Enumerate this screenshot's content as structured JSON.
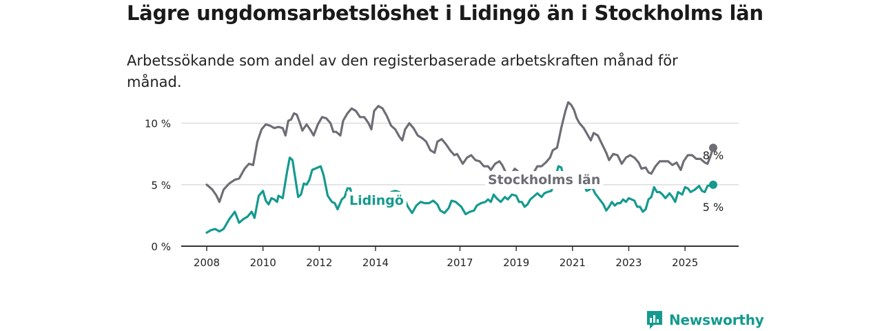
{
  "title": "Lägre ungdomsarbetslöshet i Lidingö än i Stockholms län",
  "subtitle": "Arbetssökande som andel av den registerbaserade arbetskraften månad för månad.",
  "brand": "Newsworthy",
  "colors": {
    "stockholm": "#6d6d75",
    "lidingo": "#149a8e",
    "grid": "#dddddd",
    "axis": "#333333"
  },
  "chart_data": {
    "type": "line",
    "title": "Lägre ungdomsarbetslöshet i Lidingö än i Stockholms län",
    "ylim": [
      0,
      12
    ],
    "xlim": [
      2008.0,
      2026.0
    ],
    "y_ticks": [
      {
        "value": 0,
        "label": "0 %"
      },
      {
        "value": 5,
        "label": "5 %"
      },
      {
        "value": 10,
        "label": "10 %"
      }
    ],
    "x_ticks": [
      {
        "value": 2008,
        "label": "2008"
      },
      {
        "value": 2010,
        "label": "2010"
      },
      {
        "value": 2012,
        "label": "2012"
      },
      {
        "value": 2014,
        "label": "2014"
      },
      {
        "value": 2017,
        "label": "2017"
      },
      {
        "value": 2019,
        "label": "2019"
      },
      {
        "value": 2021,
        "label": "2021"
      },
      {
        "value": 2023,
        "label": "2023"
      },
      {
        "value": 2025,
        "label": "2025"
      }
    ],
    "grid": "horizontal",
    "series": [
      {
        "name": "Stockholms län",
        "color": "#6d6d75",
        "end_label": "8 %",
        "points": [
          [
            2008.0,
            5.0
          ],
          [
            2008.2,
            4.6
          ],
          [
            2008.35,
            4.1
          ],
          [
            2008.45,
            3.6
          ],
          [
            2008.6,
            4.6
          ],
          [
            2008.8,
            5.1
          ],
          [
            2009.0,
            5.4
          ],
          [
            2009.15,
            5.5
          ],
          [
            2009.35,
            6.3
          ],
          [
            2009.5,
            6.7
          ],
          [
            2009.65,
            6.6
          ],
          [
            2009.8,
            8.5
          ],
          [
            2009.95,
            9.5
          ],
          [
            2010.1,
            9.9
          ],
          [
            2010.25,
            9.8
          ],
          [
            2010.4,
            9.6
          ],
          [
            2010.55,
            9.7
          ],
          [
            2010.7,
            9.6
          ],
          [
            2010.8,
            9.0
          ],
          [
            2010.9,
            10.2
          ],
          [
            2011.0,
            10.3
          ],
          [
            2011.1,
            10.8
          ],
          [
            2011.2,
            10.7
          ],
          [
            2011.3,
            10.1
          ],
          [
            2011.4,
            9.4
          ],
          [
            2011.55,
            9.9
          ],
          [
            2011.7,
            9.4
          ],
          [
            2011.8,
            9.0
          ],
          [
            2011.95,
            9.9
          ],
          [
            2012.1,
            10.5
          ],
          [
            2012.25,
            10.4
          ],
          [
            2012.4,
            10.0
          ],
          [
            2012.5,
            9.3
          ],
          [
            2012.6,
            9.3
          ],
          [
            2012.75,
            9.0
          ],
          [
            2012.85,
            10.2
          ],
          [
            2013.0,
            10.8
          ],
          [
            2013.15,
            11.2
          ],
          [
            2013.3,
            11.0
          ],
          [
            2013.45,
            10.5
          ],
          [
            2013.6,
            10.5
          ],
          [
            2013.75,
            10.0
          ],
          [
            2013.85,
            9.5
          ],
          [
            2013.95,
            11.0
          ],
          [
            2014.1,
            11.4
          ],
          [
            2014.25,
            11.2
          ],
          [
            2014.4,
            10.6
          ],
          [
            2014.55,
            9.8
          ],
          [
            2014.7,
            9.5
          ],
          [
            2014.85,
            8.9
          ],
          [
            2014.95,
            8.6
          ],
          [
            2015.05,
            9.5
          ],
          [
            2015.2,
            10.0
          ],
          [
            2015.35,
            9.6
          ],
          [
            2015.5,
            9.0
          ],
          [
            2015.65,
            8.8
          ],
          [
            2015.8,
            8.5
          ],
          [
            2015.95,
            7.8
          ],
          [
            2016.1,
            7.6
          ],
          [
            2016.2,
            8.5
          ],
          [
            2016.35,
            8.7
          ],
          [
            2016.5,
            8.3
          ],
          [
            2016.65,
            7.8
          ],
          [
            2016.8,
            7.4
          ],
          [
            2016.9,
            7.5
          ],
          [
            2017.0,
            7.1
          ],
          [
            2017.1,
            6.7
          ],
          [
            2017.25,
            7.2
          ],
          [
            2017.4,
            7.4
          ],
          [
            2017.55,
            7.0
          ],
          [
            2017.7,
            6.9
          ],
          [
            2017.85,
            6.5
          ],
          [
            2018.0,
            6.5
          ],
          [
            2018.1,
            6.2
          ],
          [
            2018.25,
            6.7
          ],
          [
            2018.4,
            6.9
          ],
          [
            2018.5,
            6.6
          ],
          [
            2018.65,
            5.9
          ],
          [
            2018.8,
            5.8
          ],
          [
            2018.95,
            6.3
          ],
          [
            2019.1,
            6.0
          ],
          [
            2019.25,
            5.6
          ],
          [
            2019.4,
            5.2
          ],
          [
            2019.5,
            5.3
          ],
          [
            2019.6,
            5.9
          ],
          [
            2019.75,
            6.5
          ],
          [
            2019.9,
            6.5
          ],
          [
            2020.05,
            6.8
          ],
          [
            2020.2,
            7.2
          ],
          [
            2020.3,
            7.8
          ],
          [
            2020.45,
            8.0
          ],
          [
            2020.6,
            9.6
          ],
          [
            2020.75,
            11.0
          ],
          [
            2020.85,
            11.7
          ],
          [
            2020.95,
            11.5
          ],
          [
            2021.05,
            11.1
          ],
          [
            2021.15,
            10.4
          ],
          [
            2021.25,
            10.0
          ],
          [
            2021.4,
            9.6
          ],
          [
            2021.55,
            9.0
          ],
          [
            2021.65,
            8.6
          ],
          [
            2021.75,
            9.2
          ],
          [
            2021.9,
            9.0
          ],
          [
            2022.05,
            8.3
          ],
          [
            2022.2,
            7.6
          ],
          [
            2022.3,
            7.0
          ],
          [
            2022.45,
            7.5
          ],
          [
            2022.6,
            7.4
          ],
          [
            2022.75,
            6.7
          ],
          [
            2022.9,
            7.2
          ],
          [
            2023.05,
            7.4
          ],
          [
            2023.2,
            7.2
          ],
          [
            2023.35,
            6.8
          ],
          [
            2023.45,
            6.3
          ],
          [
            2023.6,
            6.4
          ],
          [
            2023.7,
            6.0
          ],
          [
            2023.8,
            5.9
          ],
          [
            2023.95,
            6.5
          ],
          [
            2024.1,
            6.9
          ],
          [
            2024.25,
            6.9
          ],
          [
            2024.4,
            6.9
          ],
          [
            2024.55,
            6.6
          ],
          [
            2024.7,
            6.8
          ],
          [
            2024.85,
            6.2
          ],
          [
            2024.95,
            6.9
          ],
          [
            2025.1,
            7.4
          ],
          [
            2025.25,
            7.4
          ],
          [
            2025.4,
            7.1
          ],
          [
            2025.55,
            7.1
          ],
          [
            2025.7,
            6.8
          ],
          [
            2025.8,
            6.7
          ],
          [
            2025.9,
            7.3
          ],
          [
            2026.0,
            8.0
          ]
        ]
      },
      {
        "name": "Lidingö",
        "color": "#149a8e",
        "end_label": "5 %",
        "points": [
          [
            2008.0,
            1.1
          ],
          [
            2008.15,
            1.3
          ],
          [
            2008.3,
            1.4
          ],
          [
            2008.45,
            1.2
          ],
          [
            2008.6,
            1.4
          ],
          [
            2008.8,
            2.2
          ],
          [
            2009.0,
            2.8
          ],
          [
            2009.15,
            1.9
          ],
          [
            2009.3,
            2.2
          ],
          [
            2009.45,
            2.4
          ],
          [
            2009.6,
            2.8
          ],
          [
            2009.7,
            2.3
          ],
          [
            2009.85,
            4.1
          ],
          [
            2010.0,
            4.5
          ],
          [
            2010.1,
            3.7
          ],
          [
            2010.2,
            3.4
          ],
          [
            2010.3,
            3.9
          ],
          [
            2010.4,
            3.8
          ],
          [
            2010.5,
            3.6
          ],
          [
            2010.55,
            4.1
          ],
          [
            2010.7,
            3.9
          ],
          [
            2010.85,
            6.0
          ],
          [
            2010.95,
            7.2
          ],
          [
            2011.05,
            7.0
          ],
          [
            2011.15,
            5.5
          ],
          [
            2011.25,
            4.0
          ],
          [
            2011.35,
            4.2
          ],
          [
            2011.45,
            5.1
          ],
          [
            2011.55,
            5.0
          ],
          [
            2011.65,
            5.4
          ],
          [
            2011.75,
            6.2
          ],
          [
            2011.85,
            6.3
          ],
          [
            2011.95,
            6.4
          ],
          [
            2012.05,
            6.5
          ],
          [
            2012.15,
            5.8
          ],
          [
            2012.3,
            4.1
          ],
          [
            2012.45,
            3.6
          ],
          [
            2012.55,
            3.5
          ],
          [
            2012.65,
            3.0
          ],
          [
            2012.8,
            3.8
          ],
          [
            2012.9,
            4.0
          ],
          [
            2013.0,
            4.7
          ],
          [
            2013.1,
            4.7
          ],
          [
            2013.2,
            3.8
          ],
          [
            2013.3,
            3.2
          ],
          [
            2013.45,
            3.6
          ],
          [
            2013.55,
            3.3
          ],
          [
            2013.65,
            3.8
          ],
          [
            2013.75,
            3.9
          ],
          [
            2013.85,
            3.6
          ],
          [
            2013.95,
            4.0
          ],
          [
            2014.1,
            4.3
          ],
          [
            2014.2,
            3.9
          ],
          [
            2014.35,
            3.5
          ],
          [
            2014.45,
            4.0
          ],
          [
            2014.55,
            4.4
          ],
          [
            2014.7,
            4.5
          ],
          [
            2014.85,
            4.4
          ],
          [
            2015.0,
            4.0
          ],
          [
            2015.15,
            3.2
          ],
          [
            2015.3,
            2.7
          ],
          [
            2015.45,
            3.3
          ],
          [
            2015.6,
            3.6
          ],
          [
            2015.75,
            3.5
          ],
          [
            2015.9,
            3.5
          ],
          [
            2016.05,
            3.7
          ],
          [
            2016.2,
            3.4
          ],
          [
            2016.3,
            2.9
          ],
          [
            2016.45,
            2.7
          ],
          [
            2016.6,
            3.1
          ],
          [
            2016.7,
            3.7
          ],
          [
            2016.85,
            3.6
          ],
          [
            2016.95,
            3.4
          ],
          [
            2017.05,
            3.2
          ],
          [
            2017.2,
            2.6
          ],
          [
            2017.35,
            2.8
          ],
          [
            2017.5,
            2.9
          ],
          [
            2017.6,
            3.3
          ],
          [
            2017.75,
            3.5
          ],
          [
            2017.9,
            3.6
          ],
          [
            2018.0,
            3.8
          ],
          [
            2018.1,
            3.6
          ],
          [
            2018.2,
            4.2
          ],
          [
            2018.3,
            3.9
          ],
          [
            2018.45,
            3.6
          ],
          [
            2018.6,
            4.0
          ],
          [
            2018.7,
            3.8
          ],
          [
            2018.85,
            4.2
          ],
          [
            2019.0,
            4.1
          ],
          [
            2019.1,
            3.6
          ],
          [
            2019.2,
            3.6
          ],
          [
            2019.3,
            3.2
          ],
          [
            2019.4,
            3.4
          ],
          [
            2019.5,
            3.8
          ],
          [
            2019.6,
            4.0
          ],
          [
            2019.75,
            4.3
          ],
          [
            2019.9,
            4.0
          ],
          [
            2020.0,
            4.3
          ],
          [
            2020.1,
            4.4
          ],
          [
            2020.25,
            4.5
          ],
          [
            2020.35,
            5.2
          ],
          [
            2020.5,
            6.5
          ],
          [
            2020.6,
            6.4
          ],
          [
            2020.7,
            5.5
          ],
          [
            2020.8,
            5.6
          ],
          [
            2020.9,
            5.9
          ],
          [
            2021.0,
            5.7
          ],
          [
            2021.1,
            5.5
          ],
          [
            2021.2,
            5.2
          ],
          [
            2021.3,
            5.6
          ],
          [
            2021.4,
            5.0
          ],
          [
            2021.5,
            4.5
          ],
          [
            2021.6,
            4.6
          ],
          [
            2021.7,
            4.8
          ],
          [
            2021.8,
            4.3
          ],
          [
            2021.9,
            4.0
          ],
          [
            2022.0,
            3.7
          ],
          [
            2022.1,
            3.4
          ],
          [
            2022.2,
            2.9
          ],
          [
            2022.3,
            3.2
          ],
          [
            2022.4,
            3.6
          ],
          [
            2022.5,
            3.3
          ],
          [
            2022.6,
            3.5
          ],
          [
            2022.7,
            3.5
          ],
          [
            2022.8,
            3.8
          ],
          [
            2022.9,
            3.6
          ],
          [
            2023.0,
            3.9
          ],
          [
            2023.1,
            3.8
          ],
          [
            2023.2,
            3.7
          ],
          [
            2023.3,
            3.2
          ],
          [
            2023.4,
            3.2
          ],
          [
            2023.5,
            2.8
          ],
          [
            2023.6,
            3.0
          ],
          [
            2023.7,
            3.8
          ],
          [
            2023.8,
            4.0
          ],
          [
            2023.9,
            4.8
          ],
          [
            2024.0,
            4.4
          ],
          [
            2024.1,
            4.4
          ],
          [
            2024.2,
            4.2
          ],
          [
            2024.3,
            3.9
          ],
          [
            2024.45,
            4.3
          ],
          [
            2024.55,
            4.0
          ],
          [
            2024.65,
            3.6
          ],
          [
            2024.75,
            4.4
          ],
          [
            2024.9,
            4.2
          ],
          [
            2025.0,
            4.8
          ],
          [
            2025.1,
            4.7
          ],
          [
            2025.2,
            4.4
          ],
          [
            2025.35,
            4.6
          ],
          [
            2025.5,
            4.9
          ],
          [
            2025.6,
            4.5
          ],
          [
            2025.7,
            4.4
          ],
          [
            2025.8,
            4.9
          ],
          [
            2026.0,
            5.0
          ]
        ]
      }
    ]
  }
}
